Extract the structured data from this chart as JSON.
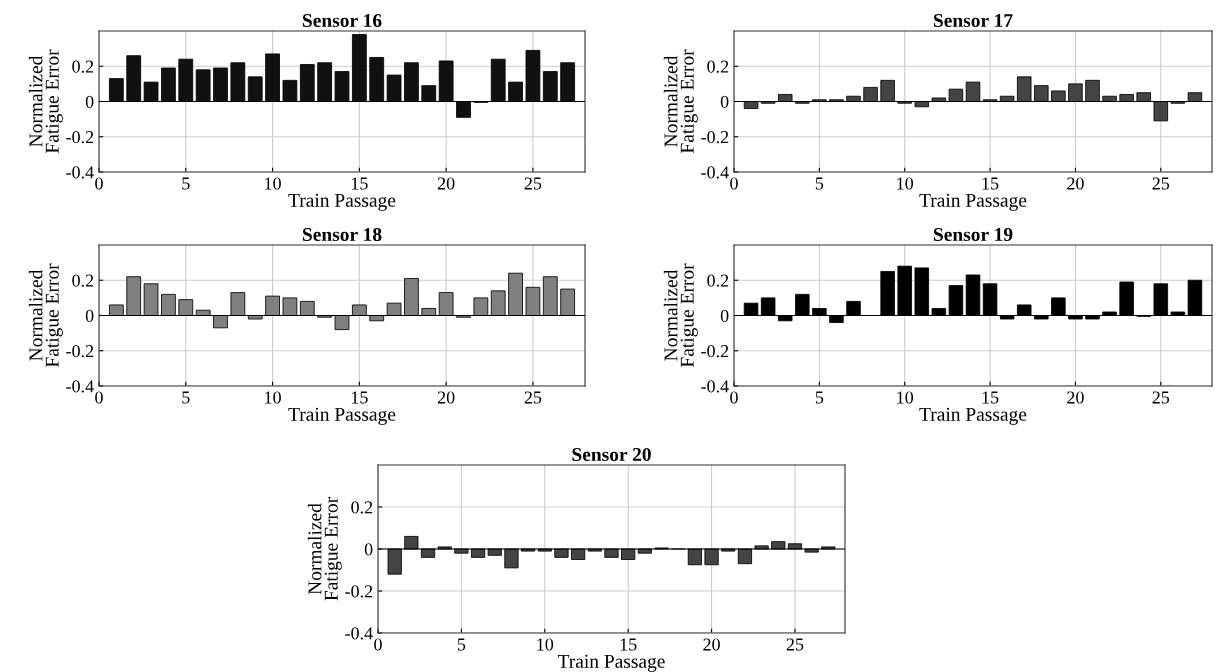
{
  "chart_data": [
    {
      "type": "bar",
      "title": "Sensor 16",
      "xlabel": "Train Passage",
      "ylabel": "Normalized\nFatigue Error",
      "color": "#111111",
      "grid": true,
      "xlim": [
        0,
        28
      ],
      "ylim": [
        -0.4,
        0.4
      ],
      "xticks": [
        0,
        5,
        10,
        15,
        20,
        25
      ],
      "yticks": [
        -0.4,
        -0.2,
        0,
        0.2
      ],
      "x": [
        1,
        2,
        3,
        4,
        5,
        6,
        7,
        8,
        9,
        10,
        11,
        12,
        13,
        14,
        15,
        16,
        17,
        18,
        19,
        20,
        21,
        22,
        23,
        24,
        25,
        26,
        27
      ],
      "values": [
        0.13,
        0.26,
        0.11,
        0.19,
        0.24,
        0.18,
        0.19,
        0.22,
        0.14,
        0.27,
        0.12,
        0.21,
        0.22,
        0.17,
        0.38,
        0.25,
        0.15,
        0.22,
        0.09,
        0.23,
        -0.09,
        -0.005,
        0.24,
        0.11,
        0.29,
        0.17,
        0.22
      ]
    },
    {
      "type": "bar",
      "title": "Sensor 17",
      "xlabel": "Train Passage",
      "ylabel": "Normalized\nFatigue Error",
      "color": "#444444",
      "grid": true,
      "xlim": [
        0,
        28
      ],
      "ylim": [
        -0.4,
        0.4
      ],
      "xticks": [
        0,
        5,
        10,
        15,
        20,
        25
      ],
      "yticks": [
        -0.4,
        -0.2,
        0,
        0.2
      ],
      "x": [
        1,
        2,
        3,
        4,
        5,
        6,
        7,
        8,
        9,
        10,
        11,
        12,
        13,
        14,
        15,
        16,
        17,
        18,
        19,
        20,
        21,
        22,
        23,
        24,
        25,
        26,
        27
      ],
      "values": [
        -0.04,
        -0.01,
        0.04,
        -0.01,
        0.01,
        0.01,
        0.03,
        0.08,
        0.12,
        -0.01,
        -0.03,
        0.02,
        0.07,
        0.11,
        0.01,
        0.03,
        0.14,
        0.09,
        0.06,
        0.1,
        0.12,
        0.03,
        0.04,
        0.05,
        -0.11,
        -0.01,
        0.05
      ]
    },
    {
      "type": "bar",
      "title": "Sensor 18",
      "xlabel": "Train Passage",
      "ylabel": "Normalized\nFatigue Error",
      "color": "#808080",
      "grid": true,
      "xlim": [
        0,
        28
      ],
      "ylim": [
        -0.4,
        0.4
      ],
      "xticks": [
        0,
        5,
        10,
        15,
        20,
        25
      ],
      "yticks": [
        -0.4,
        -0.2,
        0,
        0.2
      ],
      "x": [
        1,
        2,
        3,
        4,
        5,
        6,
        7,
        8,
        9,
        10,
        11,
        12,
        13,
        14,
        15,
        16,
        17,
        18,
        19,
        20,
        21,
        22,
        23,
        24,
        25,
        26,
        27
      ],
      "values": [
        0.06,
        0.22,
        0.18,
        0.12,
        0.09,
        0.03,
        -0.07,
        0.13,
        -0.02,
        0.11,
        0.1,
        0.08,
        -0.01,
        -0.08,
        0.06,
        -0.03,
        0.07,
        0.21,
        0.04,
        0.13,
        -0.01,
        0.1,
        0.14,
        0.24,
        0.16,
        0.22,
        0.15
      ]
    },
    {
      "type": "bar",
      "title": "Sensor 19",
      "xlabel": "Train Passage",
      "ylabel": "Normalized\nFatigue Error",
      "color": "#000000",
      "grid": true,
      "xlim": [
        0,
        28
      ],
      "ylim": [
        -0.4,
        0.4
      ],
      "xticks": [
        0,
        5,
        10,
        15,
        20,
        25
      ],
      "yticks": [
        -0.4,
        -0.2,
        0,
        0.2
      ],
      "x": [
        1,
        2,
        3,
        4,
        5,
        6,
        7,
        8,
        9,
        10,
        11,
        12,
        13,
        14,
        15,
        16,
        17,
        18,
        19,
        20,
        21,
        22,
        23,
        24,
        25,
        26,
        27
      ],
      "values": [
        0.07,
        0.1,
        -0.03,
        0.12,
        0.04,
        -0.04,
        0.08,
        0,
        0.25,
        0.28,
        0.27,
        0.04,
        0.17,
        0.23,
        0.18,
        -0.02,
        0.06,
        -0.02,
        0.1,
        -0.02,
        -0.02,
        0.02,
        0.19,
        -0.005,
        0.18,
        0.02,
        0.2
      ]
    },
    {
      "type": "bar",
      "title": "Sensor 20",
      "xlabel": "Train Passage",
      "ylabel": "Normalized\nFatigue Error",
      "color": "#444444",
      "grid": true,
      "xlim": [
        0,
        28
      ],
      "ylim": [
        -0.4,
        0.4
      ],
      "xticks": [
        0,
        5,
        10,
        15,
        20,
        25
      ],
      "yticks": [
        -0.4,
        -0.2,
        0,
        0.2
      ],
      "x": [
        1,
        2,
        3,
        4,
        5,
        6,
        7,
        8,
        9,
        10,
        11,
        12,
        13,
        14,
        15,
        16,
        17,
        18,
        19,
        20,
        21,
        22,
        23,
        24,
        25,
        26,
        27
      ],
      "values": [
        -0.12,
        0.06,
        -0.04,
        0.01,
        -0.02,
        -0.04,
        -0.03,
        -0.09,
        -0.01,
        -0.01,
        -0.04,
        -0.05,
        -0.01,
        -0.04,
        -0.05,
        -0.02,
        0.005,
        0,
        -0.075,
        -0.075,
        -0.01,
        -0.07,
        0.015,
        0.035,
        0.025,
        -0.015,
        0.01
      ]
    }
  ]
}
